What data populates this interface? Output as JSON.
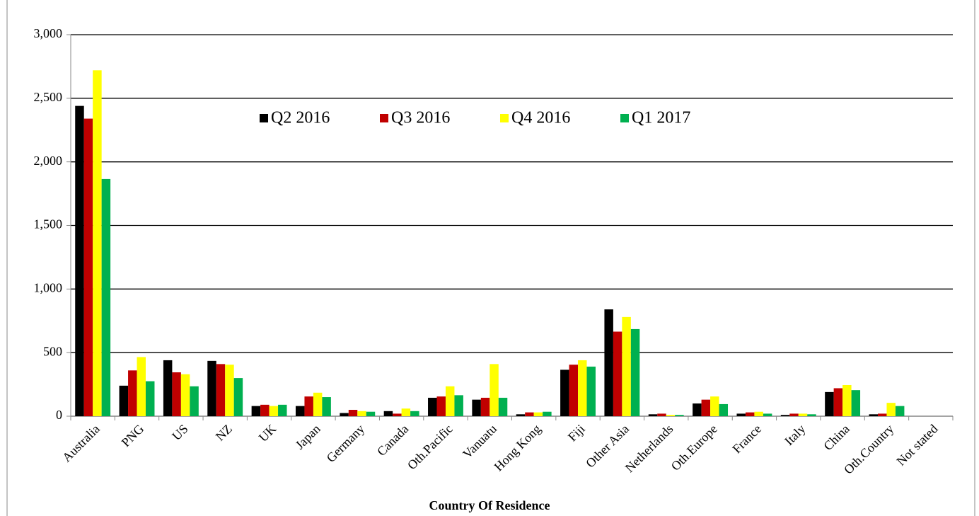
{
  "chart_data": {
    "type": "bar",
    "x_label": "Country Of  Residence",
    "categories": [
      "Australia",
      "PNG",
      "US",
      "NZ",
      "UK",
      "Japan",
      "Germany",
      "Canada",
      "Oth.Pacific",
      "Vanuatu",
      "Hong Kong",
      "Fiji",
      "Other Asia",
      "Netherlands",
      "Oth.Europe",
      "France",
      "Italy",
      "China",
      "Oth.Country",
      "Not stated"
    ],
    "series": [
      {
        "name": "Q2 2016",
        "color": "#000000",
        "values": [
          2440,
          240,
          440,
          435,
          80,
          80,
          25,
          40,
          145,
          130,
          15,
          365,
          840,
          15,
          100,
          20,
          10,
          190,
          15,
          0
        ]
      },
      {
        "name": "Q3 2016",
        "color": "#c00000",
        "values": [
          2340,
          360,
          345,
          410,
          90,
          155,
          50,
          20,
          155,
          145,
          30,
          405,
          665,
          20,
          130,
          30,
          20,
          220,
          20,
          0
        ]
      },
      {
        "name": "Q4 2016",
        "color": "#ffff00",
        "values": [
          2720,
          465,
          330,
          405,
          80,
          185,
          40,
          60,
          235,
          410,
          30,
          440,
          780,
          10,
          155,
          35,
          20,
          245,
          105,
          0
        ]
      },
      {
        "name": "Q1 2017",
        "color": "#00b050",
        "values": [
          1865,
          275,
          235,
          300,
          90,
          150,
          35,
          40,
          165,
          145,
          35,
          390,
          685,
          10,
          95,
          20,
          15,
          205,
          80,
          0
        ]
      }
    ],
    "ylim": [
      0,
      3000
    ],
    "yticks": [
      0,
      500,
      {
        "value": 1000,
        "label": "1,000"
      },
      {
        "value": 1500,
        "label": "1,500"
      },
      {
        "value": 2000,
        "label": "2,000"
      },
      {
        "value": 2500,
        "label": "2,500"
      },
      {
        "value": 3000,
        "label": "3,000"
      }
    ],
    "grid": true,
    "legend": "top"
  }
}
